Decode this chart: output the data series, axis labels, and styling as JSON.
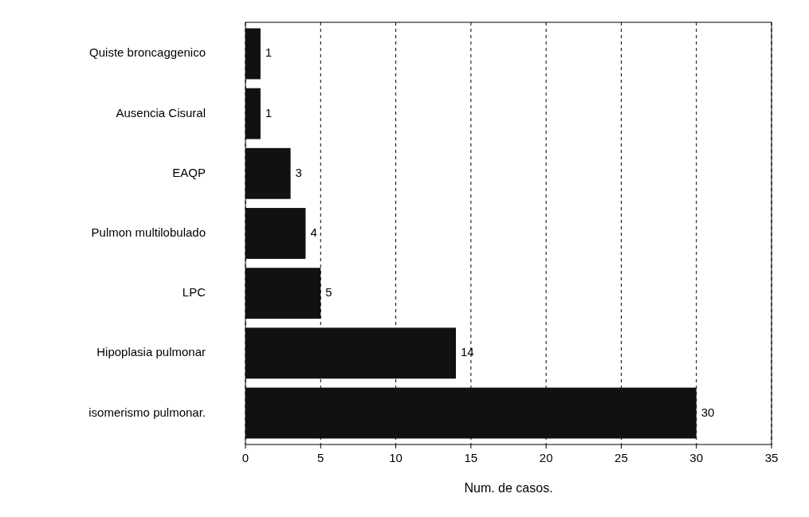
{
  "chart_data": {
    "type": "bar",
    "orientation": "horizontal",
    "xlabel": "Num. de casos.",
    "categories": [
      "Quiste broncaggenico",
      "Ausencia Cisural",
      "EAQP",
      "Pulmon multilobulado",
      "LPC",
      "Hipoplasia pulmonar",
      "isomerismo pulmonar."
    ],
    "values": [
      1,
      1,
      3,
      4,
      5,
      14,
      30
    ],
    "color": "#111111",
    "xlim": [
      0,
      35
    ],
    "xticks": [
      0,
      5,
      10,
      15,
      20,
      25,
      30,
      35
    ],
    "grid": "x",
    "data_labels": true
  }
}
